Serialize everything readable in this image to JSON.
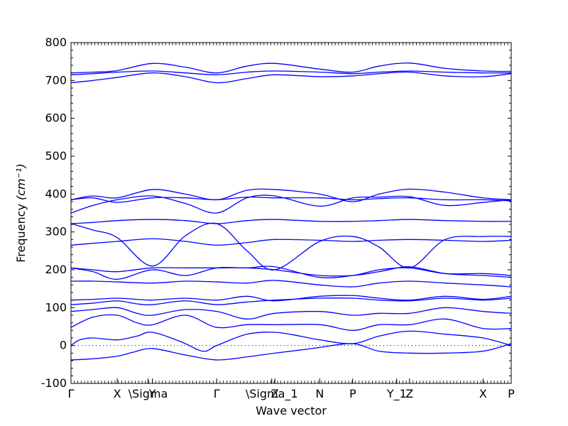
{
  "chart_data": {
    "type": "line",
    "title": "",
    "xlabel": "Wave vector",
    "ylabel": "Frequency",
    "ylabel_unit": "(cm⁻¹)",
    "ylim": [
      -100,
      800
    ],
    "yticks": [
      -100,
      0,
      100,
      200,
      300,
      400,
      500,
      600,
      700,
      800
    ],
    "xlim": [
      0,
      1
    ],
    "grid": false,
    "legend": "none",
    "line_color": "#0000ff",
    "zero_line": {
      "y": 0,
      "style": "dotted",
      "color": "#000000"
    },
    "high_point_labels": [
      {
        "label": "Γ",
        "x": 0.0
      },
      {
        "label": "X",
        "x": 0.105
      },
      {
        "label": "\\Sigma",
        "x": 0.175
      },
      {
        "label": "Y",
        "x": 0.185
      },
      {
        "label": "Γ",
        "x": 0.331
      },
      {
        "label": "\\Sigma_1",
        "x": 0.456
      },
      {
        "label": "Z",
        "x": 0.463
      },
      {
        "label": "N",
        "x": 0.565
      },
      {
        "label": "P",
        "x": 0.64
      },
      {
        "label": "Y_1",
        "x": 0.74
      },
      {
        "label": "Z",
        "x": 0.769
      },
      {
        "label": "X",
        "x": 0.936
      },
      {
        "label": "P",
        "x": 1.0
      }
    ],
    "series": [
      {
        "x": [
          0,
          0.05,
          0.105,
          0.14,
          0.185,
          0.26,
          0.331,
          0.4,
          0.463,
          0.52,
          0.565,
          0.64,
          0.7,
          0.769,
          0.85,
          0.936,
          1.0
        ],
        "values": [
          -38,
          -35,
          -28,
          -18,
          -8,
          -25,
          -38,
          -30,
          -20,
          -12,
          -5,
          5,
          -15,
          -20,
          -20,
          -15,
          5
        ]
      },
      {
        "x": [
          0,
          0.02,
          0.05,
          0.105,
          0.15,
          0.185,
          0.25,
          0.3,
          0.331,
          0.4,
          0.463,
          0.52,
          0.565,
          0.64,
          0.7,
          0.769,
          0.85,
          0.936,
          1.0
        ],
        "values": [
          0,
          15,
          20,
          15,
          25,
          35,
          10,
          -15,
          0,
          30,
          35,
          25,
          15,
          5,
          25,
          38,
          30,
          20,
          0
        ]
      },
      {
        "x": [
          0,
          0.05,
          0.105,
          0.15,
          0.185,
          0.26,
          0.331,
          0.4,
          0.463,
          0.565,
          0.64,
          0.7,
          0.769,
          0.85,
          0.936,
          1.0
        ],
        "values": [
          48,
          75,
          80,
          60,
          55,
          80,
          48,
          55,
          55,
          55,
          40,
          55,
          55,
          70,
          45,
          45
        ]
      },
      {
        "x": [
          0,
          0.05,
          0.105,
          0.15,
          0.185,
          0.26,
          0.331,
          0.4,
          0.463,
          0.565,
          0.64,
          0.7,
          0.769,
          0.85,
          0.936,
          1.0
        ],
        "values": [
          90,
          95,
          100,
          85,
          80,
          95,
          90,
          70,
          85,
          90,
          80,
          85,
          85,
          100,
          90,
          85
        ]
      },
      {
        "x": [
          0,
          0.05,
          0.105,
          0.15,
          0.185,
          0.26,
          0.331,
          0.4,
          0.463,
          0.565,
          0.64,
          0.7,
          0.769,
          0.85,
          0.936,
          1.0
        ],
        "values": [
          108,
          112,
          118,
          110,
          108,
          118,
          108,
          115,
          120,
          125,
          125,
          120,
          118,
          125,
          120,
          125
        ]
      },
      {
        "x": [
          0,
          0.05,
          0.105,
          0.15,
          0.185,
          0.26,
          0.331,
          0.4,
          0.463,
          0.565,
          0.64,
          0.7,
          0.769,
          0.85,
          0.936,
          1.0
        ],
        "values": [
          120,
          122,
          125,
          122,
          120,
          125,
          120,
          130,
          118,
          130,
          132,
          125,
          120,
          130,
          122,
          130
        ]
      },
      {
        "x": [
          0,
          0.05,
          0.105,
          0.185,
          0.26,
          0.331,
          0.4,
          0.463,
          0.565,
          0.64,
          0.7,
          0.769,
          0.85,
          0.936,
          1.0
        ],
        "values": [
          170,
          170,
          168,
          165,
          170,
          168,
          165,
          172,
          160,
          155,
          165,
          170,
          165,
          160,
          155
        ]
      },
      {
        "x": [
          0,
          0.05,
          0.105,
          0.185,
          0.26,
          0.331,
          0.4,
          0.463,
          0.565,
          0.64,
          0.7,
          0.769,
          0.85,
          0.936,
          1.0
        ],
        "values": [
          205,
          195,
          175,
          200,
          185,
          205,
          205,
          208,
          180,
          185,
          200,
          205,
          190,
          190,
          185
        ]
      },
      {
        "x": [
          0,
          0.05,
          0.105,
          0.185,
          0.26,
          0.331,
          0.4,
          0.463,
          0.565,
          0.64,
          0.7,
          0.769,
          0.85,
          0.936,
          1.0
        ],
        "values": [
          205,
          200,
          195,
          205,
          205,
          205,
          205,
          200,
          185,
          185,
          195,
          208,
          190,
          185,
          180
        ]
      },
      {
        "x": [
          0,
          0.05,
          0.105,
          0.185,
          0.26,
          0.331,
          0.4,
          0.463,
          0.565,
          0.64,
          0.7,
          0.769,
          0.85,
          0.936,
          1.0
        ],
        "values": [
          265,
          270,
          275,
          282,
          275,
          265,
          272,
          280,
          278,
          275,
          278,
          280,
          278,
          275,
          278
        ]
      },
      {
        "x": [
          0,
          0.05,
          0.105,
          0.185,
          0.26,
          0.331,
          0.4,
          0.463,
          0.565,
          0.64,
          0.7,
          0.769,
          0.85,
          0.936,
          1.0
        ],
        "values": [
          322,
          305,
          285,
          210,
          290,
          322,
          250,
          200,
          275,
          288,
          260,
          205,
          280,
          288,
          288
        ]
      },
      {
        "x": [
          0,
          0.05,
          0.105,
          0.185,
          0.26,
          0.331,
          0.4,
          0.463,
          0.565,
          0.64,
          0.7,
          0.769,
          0.85,
          0.936,
          1.0
        ],
        "values": [
          322,
          325,
          330,
          333,
          330,
          322,
          330,
          333,
          328,
          328,
          330,
          333,
          330,
          328,
          328
        ]
      },
      {
        "x": [
          0,
          0.05,
          0.105,
          0.185,
          0.26,
          0.331,
          0.4,
          0.463,
          0.565,
          0.64,
          0.7,
          0.769,
          0.85,
          0.936,
          1.0
        ],
        "values": [
          350,
          370,
          385,
          395,
          375,
          350,
          390,
          395,
          368,
          390,
          392,
          393,
          370,
          378,
          385
        ]
      },
      {
        "x": [
          0,
          0.05,
          0.105,
          0.185,
          0.26,
          0.331,
          0.4,
          0.463,
          0.565,
          0.64,
          0.7,
          0.769,
          0.85,
          0.936,
          1.0
        ],
        "values": [
          385,
          395,
          390,
          412,
          400,
          385,
          410,
          412,
          400,
          380,
          400,
          413,
          405,
          390,
          385
        ]
      },
      {
        "x": [
          0,
          0.05,
          0.105,
          0.185,
          0.26,
          0.331,
          0.4,
          0.463,
          0.565,
          0.64,
          0.7,
          0.769,
          0.85,
          0.936,
          1.0
        ],
        "values": [
          385,
          390,
          378,
          390,
          390,
          385,
          392,
          390,
          390,
          385,
          388,
          390,
          385,
          385,
          382
        ]
      },
      {
        "x": [
          0,
          0.05,
          0.105,
          0.185,
          0.26,
          0.331,
          0.4,
          0.463,
          0.565,
          0.64,
          0.7,
          0.769,
          0.85,
          0.936,
          1.0
        ],
        "values": [
          694,
          700,
          708,
          720,
          710,
          694,
          705,
          715,
          710,
          712,
          718,
          722,
          712,
          710,
          718
        ]
      },
      {
        "x": [
          0,
          0.05,
          0.105,
          0.185,
          0.26,
          0.331,
          0.4,
          0.463,
          0.565,
          0.64,
          0.7,
          0.769,
          0.85,
          0.936,
          1.0
        ],
        "values": [
          715,
          718,
          722,
          725,
          720,
          715,
          722,
          725,
          722,
          718,
          722,
          725,
          722,
          720,
          720
        ]
      },
      {
        "x": [
          0,
          0.05,
          0.105,
          0.185,
          0.26,
          0.331,
          0.4,
          0.463,
          0.565,
          0.64,
          0.7,
          0.769,
          0.85,
          0.936,
          1.0
        ],
        "values": [
          720,
          722,
          726,
          745,
          735,
          720,
          738,
          745,
          730,
          722,
          738,
          746,
          732,
          725,
          724
        ]
      }
    ]
  }
}
